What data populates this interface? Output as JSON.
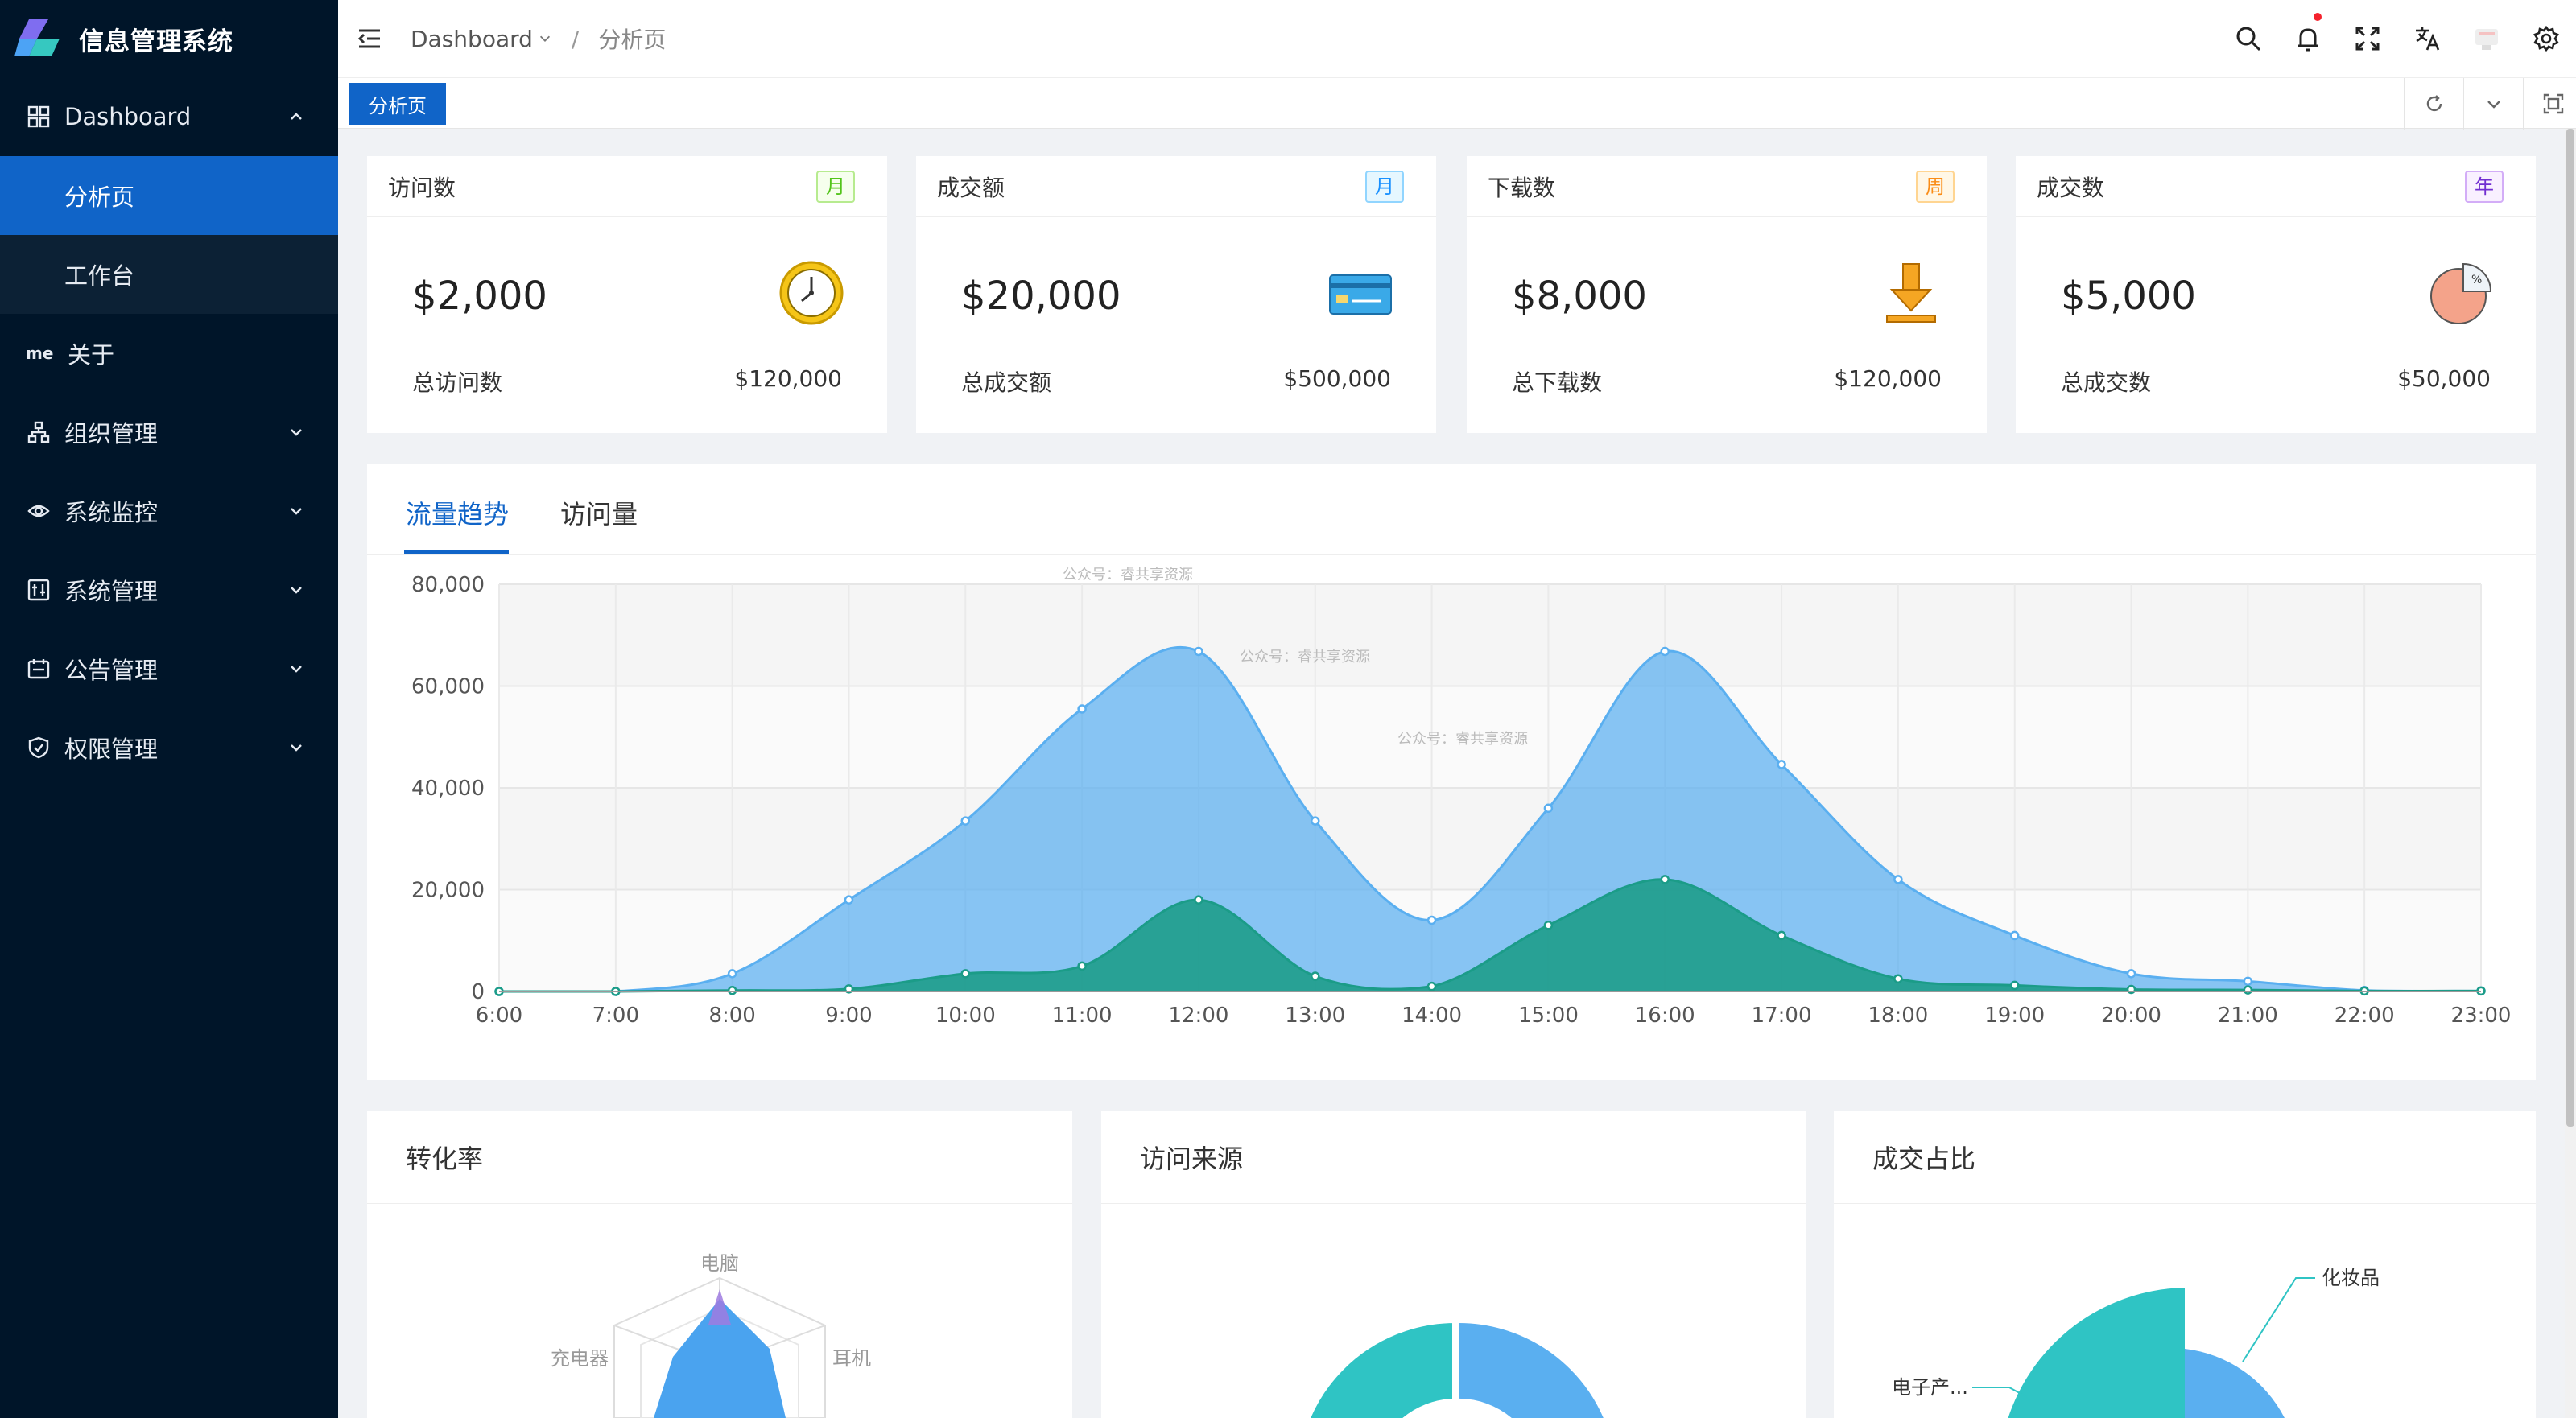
{
  "app": {
    "title": "信息管理系统"
  },
  "sidebar": {
    "items": [
      {
        "label": "Dashboard",
        "icon": "dashboard-grid-icon",
        "expanded": true
      },
      {
        "label": "分析页",
        "active": true
      },
      {
        "label": "工作台"
      },
      {
        "label": "关于",
        "icon_text": "me"
      },
      {
        "label": "组织管理",
        "icon": "org-tree-icon"
      },
      {
        "label": "系统监控",
        "icon": "eye-icon"
      },
      {
        "label": "系统管理",
        "icon": "settings-panel-icon"
      },
      {
        "label": "公告管理",
        "icon": "calendar-icon"
      },
      {
        "label": "权限管理",
        "icon": "shield-icon"
      }
    ]
  },
  "header": {
    "breadcrumb": [
      "Dashboard",
      "分析页"
    ],
    "tools": [
      "search-icon",
      "bell-icon",
      "fullscreen-icon",
      "translate-icon",
      "avatar",
      "gear-icon"
    ]
  },
  "tabs": {
    "active": "分析页"
  },
  "stats": [
    {
      "title": "访问数",
      "badge": "月",
      "badge_color": "#52c41a",
      "value": "$2,000",
      "footer_label": "总访问数",
      "footer_value": "$120,000",
      "icon": "clock-icon"
    },
    {
      "title": "成交额",
      "badge": "月",
      "badge_color": "#1890ff",
      "value": "$20,000",
      "footer_label": "总成交额",
      "footer_value": "$500,000",
      "icon": "credit-card-icon"
    },
    {
      "title": "下载数",
      "badge": "周",
      "badge_color": "#fa8c16",
      "value": "$8,000",
      "footer_label": "总下载数",
      "footer_value": "$120,000",
      "icon": "download-icon"
    },
    {
      "title": "成交数",
      "badge": "年",
      "badge_color": "#722ed1",
      "value": "$5,000",
      "footer_label": "总成交数",
      "footer_value": "$50,000",
      "icon": "pie-chart-icon"
    }
  ],
  "trend": {
    "tabs": [
      "流量趋势",
      "访问量"
    ],
    "watermark": "公众号：睿共享资源"
  },
  "chart_data": {
    "type": "area",
    "x": [
      "6:00",
      "7:00",
      "8:00",
      "9:00",
      "10:00",
      "11:00",
      "12:00",
      "13:00",
      "14:00",
      "15:00",
      "16:00",
      "17:00",
      "18:00",
      "19:00",
      "20:00",
      "21:00",
      "22:00",
      "23:00"
    ],
    "ylim": [
      0,
      80000
    ],
    "yticks": [
      0,
      20000,
      40000,
      60000,
      80000
    ],
    "ytick_labels": [
      "0",
      "20,000",
      "40,000",
      "60,000",
      "80,000"
    ],
    "grid": true,
    "series": [
      {
        "values": [
          0,
          0,
          3500,
          18000,
          33500,
          55500,
          66800,
          33500,
          14000,
          36000,
          66800,
          44600,
          22000,
          11000,
          3500,
          2000,
          200,
          100
        ],
        "color": "#5aaff0"
      },
      {
        "values": [
          0,
          0,
          200,
          500,
          3500,
          5000,
          18000,
          3000,
          1000,
          13000,
          22000,
          11000,
          2500,
          1200,
          400,
          300,
          100,
          100
        ],
        "color": "#1b9c88"
      }
    ]
  },
  "panels": [
    {
      "title": "转化率",
      "labels": [
        "电脑",
        "充电器",
        "耳机"
      ]
    },
    {
      "title": "访问来源"
    },
    {
      "title": "成交占比",
      "labels": [
        "化妆品",
        "电子产..."
      ]
    }
  ]
}
